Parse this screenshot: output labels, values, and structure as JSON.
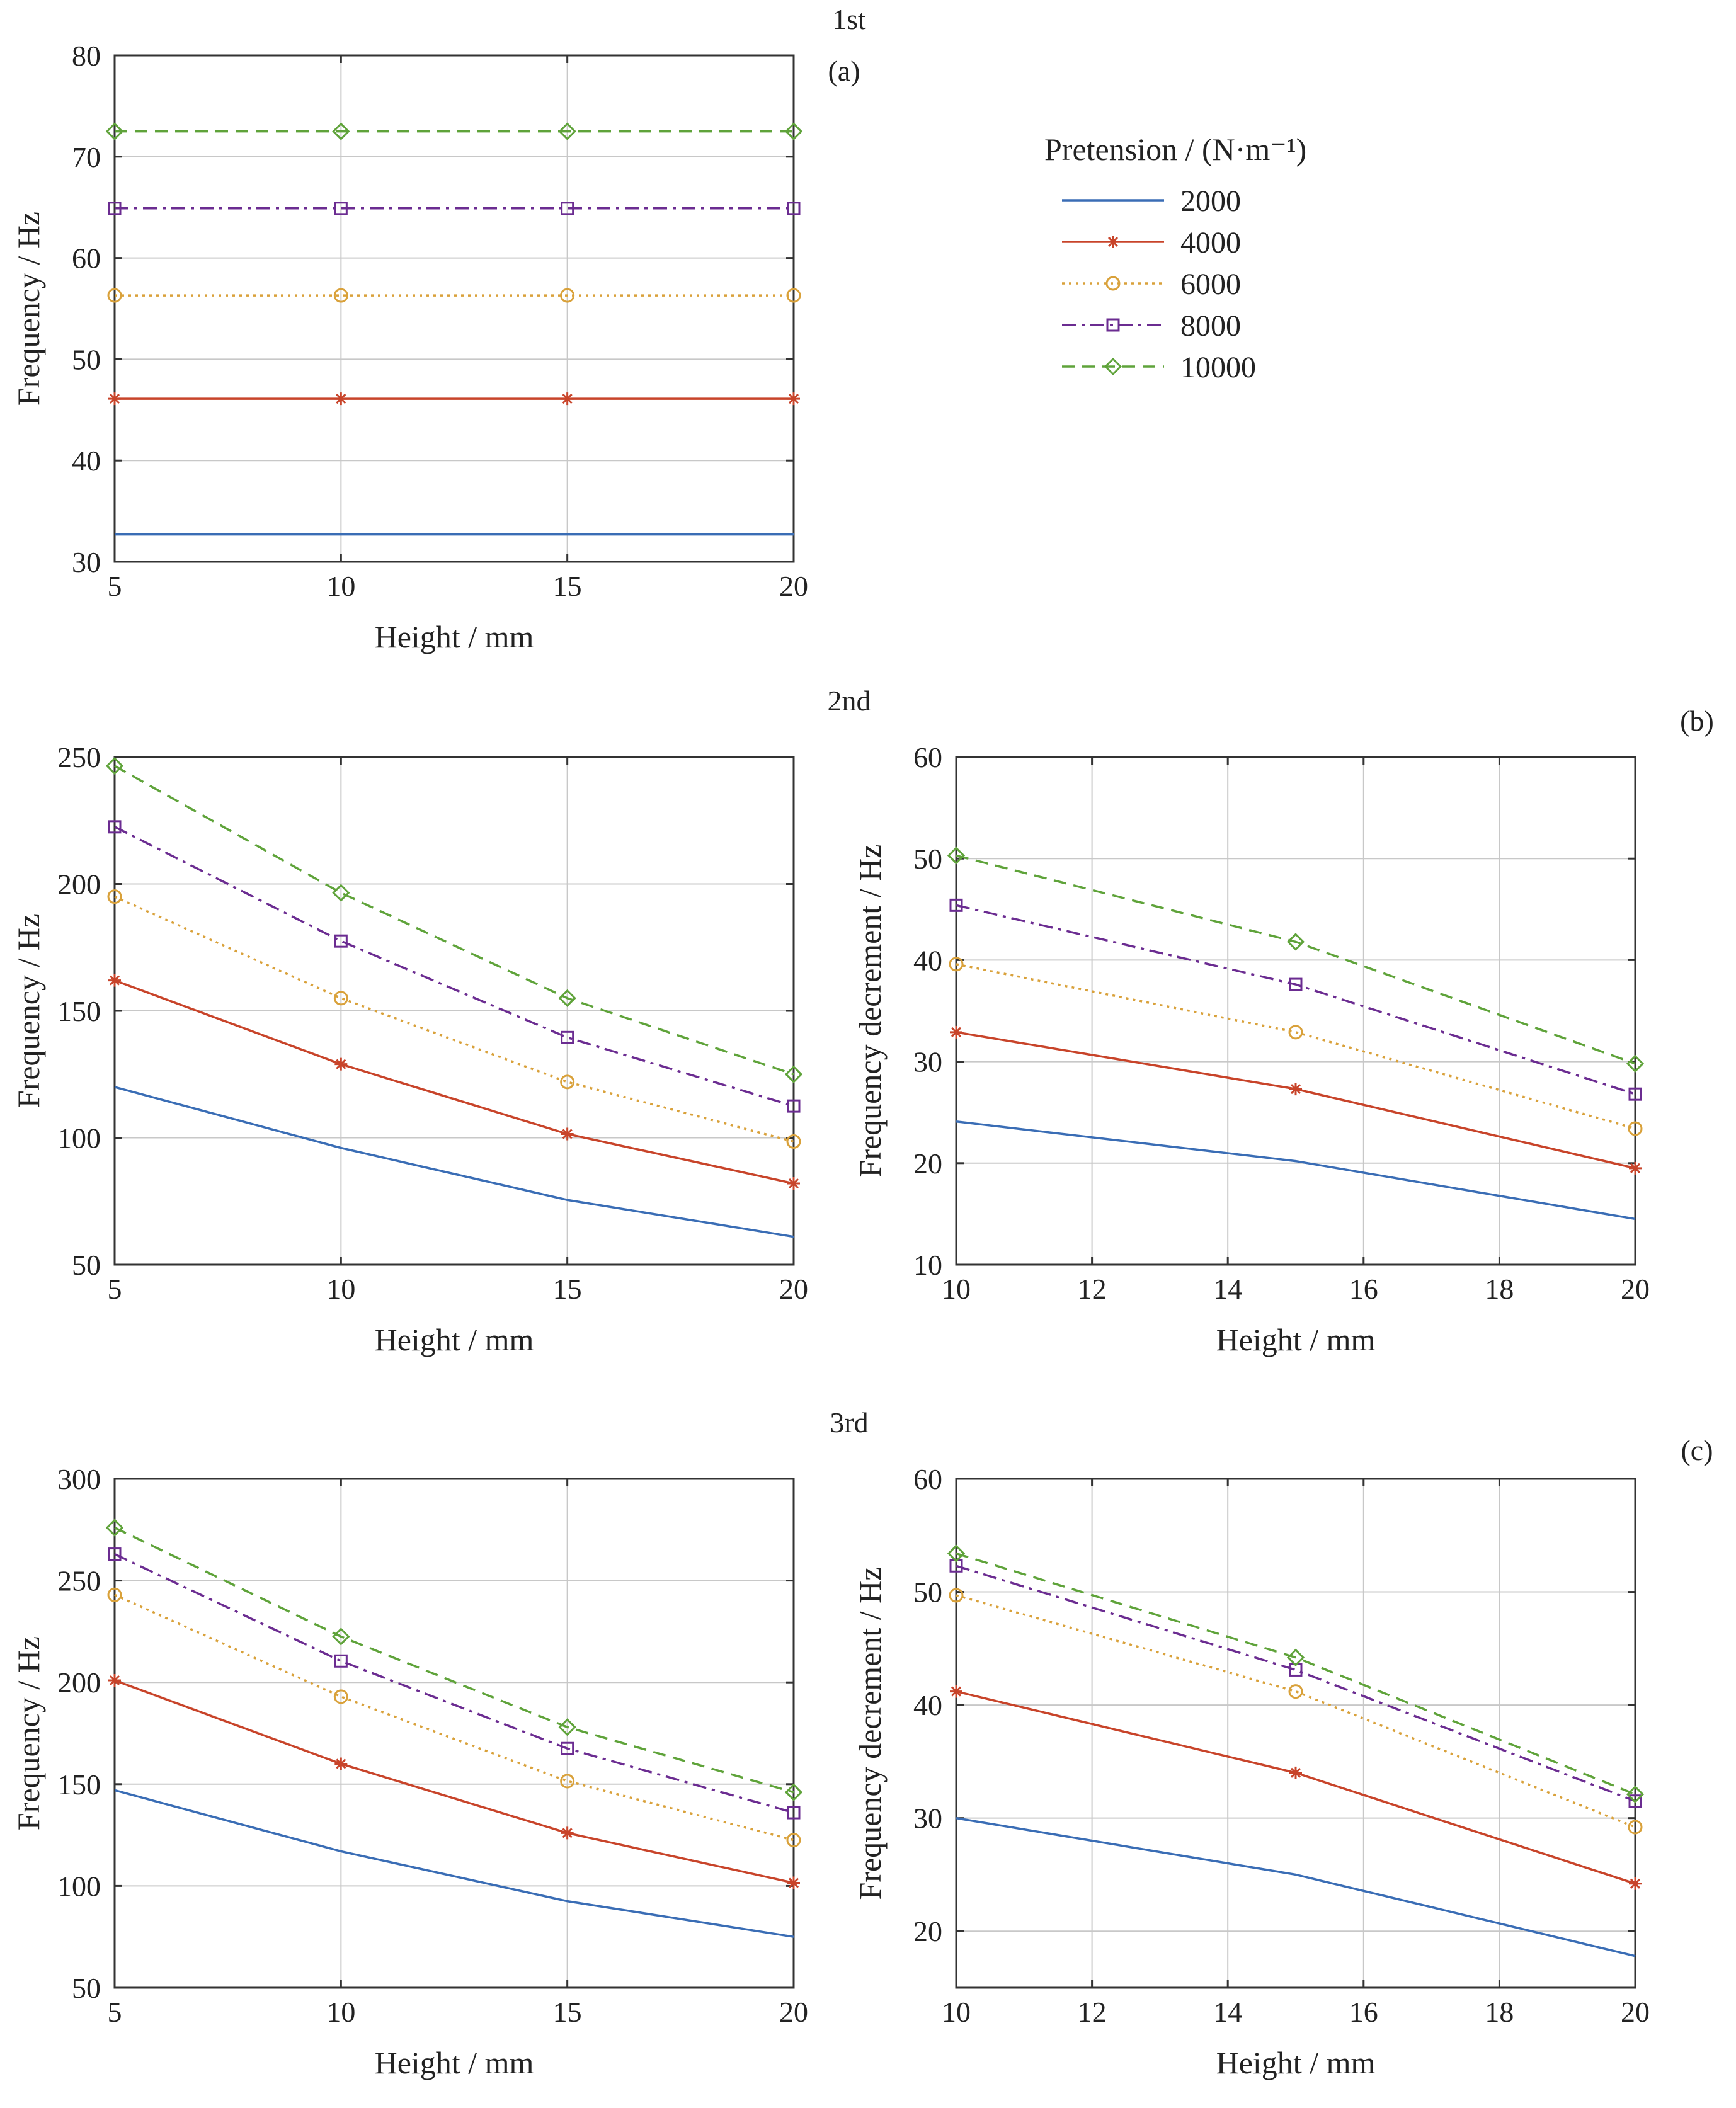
{
  "legend": {
    "title": "Pretension / (N·m⁻¹)",
    "position": "top-right"
  },
  "series_styles": [
    {
      "name": "2000",
      "color": "#3a6db5",
      "dash": "",
      "marker": "none"
    },
    {
      "name": "4000",
      "color": "#c8442a",
      "dash": "",
      "marker": "asterisk"
    },
    {
      "name": "6000",
      "color": "#d9a13a",
      "dash": "4 7",
      "marker": "circle"
    },
    {
      "name": "8000",
      "color": "#6b2c91",
      "dash": "22 9 5 9",
      "marker": "square"
    },
    {
      "name": "10000",
      "color": "#5fa33a",
      "dash": "20 12",
      "marker": "diamond"
    }
  ],
  "chart_data": [
    {
      "id": "a-1st-frequency",
      "type": "line",
      "title": "1st",
      "panel_label": "(a)",
      "xlabel": "Height / mm",
      "ylabel": "Frequency / Hz",
      "xlim": [
        5,
        20
      ],
      "ylim": [
        30,
        80
      ],
      "xticks": [
        5,
        10,
        15,
        20
      ],
      "yticks": [
        30,
        40,
        50,
        60,
        70,
        80
      ],
      "grid": true,
      "x": [
        5,
        10,
        15,
        20
      ],
      "series": [
        {
          "name": "2000",
          "values": [
            32.7,
            32.7,
            32.7,
            32.7
          ]
        },
        {
          "name": "4000",
          "values": [
            46.1,
            46.1,
            46.1,
            46.1
          ]
        },
        {
          "name": "6000",
          "values": [
            56.3,
            56.3,
            56.3,
            56.3
          ]
        },
        {
          "name": "8000",
          "values": [
            64.9,
            64.9,
            64.9,
            64.9
          ]
        },
        {
          "name": "10000",
          "values": [
            72.5,
            72.5,
            72.5,
            72.5
          ]
        }
      ]
    },
    {
      "id": "b-2nd-frequency",
      "type": "line",
      "title": "2nd",
      "panel_label": "",
      "xlabel": "Height / mm",
      "ylabel": "Frequency / Hz",
      "xlim": [
        5,
        20
      ],
      "ylim": [
        50,
        250
      ],
      "xticks": [
        5,
        10,
        15,
        20
      ],
      "yticks": [
        50,
        100,
        150,
        200,
        250
      ],
      "grid": true,
      "x": [
        5,
        10,
        15,
        20
      ],
      "series": [
        {
          "name": "2000",
          "values": [
            120,
            96,
            75.5,
            61
          ]
        },
        {
          "name": "4000",
          "values": [
            162,
            129,
            101.5,
            82
          ]
        },
        {
          "name": "6000",
          "values": [
            195,
            155,
            122,
            98.5
          ]
        },
        {
          "name": "8000",
          "values": [
            222.5,
            177.5,
            139.5,
            112.5
          ]
        },
        {
          "name": "10000",
          "values": [
            246.5,
            196.5,
            155,
            125
          ]
        }
      ]
    },
    {
      "id": "b-2nd-decrement",
      "type": "line",
      "title": "",
      "panel_label": "(b)",
      "xlabel": "Height / mm",
      "ylabel": "Frequency decrement / Hz",
      "xlim": [
        10,
        20
      ],
      "ylim": [
        10,
        60
      ],
      "xticks": [
        10,
        12,
        14,
        16,
        18,
        20
      ],
      "yticks": [
        10,
        20,
        30,
        40,
        50,
        60
      ],
      "grid": true,
      "x": [
        10,
        15,
        20
      ],
      "series": [
        {
          "name": "2000",
          "values": [
            24.1,
            20.2,
            14.5
          ]
        },
        {
          "name": "4000",
          "values": [
            32.9,
            27.3,
            19.5
          ]
        },
        {
          "name": "6000",
          "values": [
            39.6,
            32.9,
            23.4
          ]
        },
        {
          "name": "8000",
          "values": [
            45.4,
            37.6,
            26.8
          ]
        },
        {
          "name": "10000",
          "values": [
            50.3,
            41.8,
            29.8
          ]
        }
      ]
    },
    {
      "id": "c-3rd-frequency",
      "type": "line",
      "title": "3rd",
      "panel_label": "",
      "xlabel": "Height / mm",
      "ylabel": "Frequency / Hz",
      "xlim": [
        5,
        20
      ],
      "ylim": [
        50,
        300
      ],
      "xticks": [
        5,
        10,
        15,
        20
      ],
      "yticks": [
        50,
        100,
        150,
        200,
        250,
        300
      ],
      "grid": true,
      "x": [
        5,
        10,
        15,
        20
      ],
      "series": [
        {
          "name": "2000",
          "values": [
            147,
            117,
            92.5,
            75
          ]
        },
        {
          "name": "4000",
          "values": [
            201,
            160,
            126,
            101.5
          ]
        },
        {
          "name": "6000",
          "values": [
            243,
            193,
            151.5,
            122.5
          ]
        },
        {
          "name": "8000",
          "values": [
            263,
            210.5,
            167.5,
            136
          ]
        },
        {
          "name": "10000",
          "values": [
            276,
            222.5,
            178,
            146
          ]
        }
      ]
    },
    {
      "id": "c-3rd-decrement",
      "type": "line",
      "title": "",
      "panel_label": "(c)",
      "xlabel": "Height / mm",
      "ylabel": "Frequency decrement / Hz",
      "xlim": [
        10,
        20
      ],
      "ylim": [
        15,
        60
      ],
      "xticks": [
        10,
        12,
        14,
        16,
        18,
        20
      ],
      "yticks": [
        20,
        30,
        40,
        50,
        60
      ],
      "grid": true,
      "x": [
        10,
        15,
        20
      ],
      "series": [
        {
          "name": "2000",
          "values": [
            30,
            25,
            17.8
          ]
        },
        {
          "name": "4000",
          "values": [
            41.2,
            34,
            24.2
          ]
        },
        {
          "name": "6000",
          "values": [
            49.7,
            41.2,
            29.2
          ]
        },
        {
          "name": "8000",
          "values": [
            52.3,
            43.1,
            31.5
          ]
        },
        {
          "name": "10000",
          "values": [
            53.4,
            44.2,
            32.1
          ]
        }
      ]
    }
  ]
}
